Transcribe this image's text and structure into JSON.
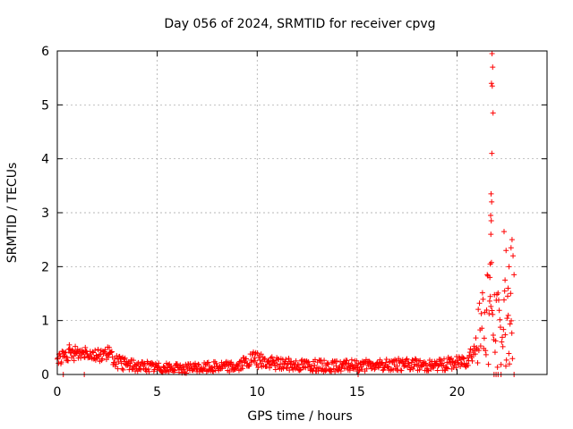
{
  "chart_data": {
    "type": "scatter",
    "title": "Day 056 of 2024, SRMTID for receiver cpvg",
    "xlabel": "GPS time / hours",
    "ylabel": "SRMTID / TECUs",
    "xlim": [
      0,
      24.5
    ],
    "ylim": [
      0,
      6
    ],
    "xticks": [
      "0",
      "5",
      "10",
      "15",
      "20"
    ],
    "yticks": [
      "0",
      "1",
      "2",
      "3",
      "4",
      "5",
      "6"
    ],
    "xtick_values": [
      0,
      5,
      10,
      15,
      20
    ],
    "ytick_values": [
      0,
      1,
      2,
      3,
      4,
      5,
      6
    ],
    "grid": true,
    "marker": "plus",
    "color": "#ff0000",
    "profile": [
      {
        "x": 0.0,
        "y": 0.3
      },
      {
        "x": 0.5,
        "y": 0.35
      },
      {
        "x": 1.0,
        "y": 0.38
      },
      {
        "x": 1.5,
        "y": 0.42
      },
      {
        "x": 2.0,
        "y": 0.35
      },
      {
        "x": 2.5,
        "y": 0.4
      },
      {
        "x": 3.0,
        "y": 0.22
      },
      {
        "x": 4.0,
        "y": 0.16
      },
      {
        "x": 5.0,
        "y": 0.13
      },
      {
        "x": 6.0,
        "y": 0.11
      },
      {
        "x": 7.0,
        "y": 0.12
      },
      {
        "x": 8.0,
        "y": 0.15
      },
      {
        "x": 9.0,
        "y": 0.15
      },
      {
        "x": 9.8,
        "y": 0.28
      },
      {
        "x": 10.5,
        "y": 0.22
      },
      {
        "x": 12.0,
        "y": 0.18
      },
      {
        "x": 13.0,
        "y": 0.17
      },
      {
        "x": 14.0,
        "y": 0.15
      },
      {
        "x": 15.0,
        "y": 0.17
      },
      {
        "x": 16.0,
        "y": 0.16
      },
      {
        "x": 17.0,
        "y": 0.19
      },
      {
        "x": 18.0,
        "y": 0.18
      },
      {
        "x": 19.0,
        "y": 0.17
      },
      {
        "x": 20.0,
        "y": 0.22
      },
      {
        "x": 20.5,
        "y": 0.3
      },
      {
        "x": 21.0,
        "y": 0.55
      },
      {
        "x": 21.3,
        "y": 1.0
      },
      {
        "x": 21.6,
        "y": 1.4
      },
      {
        "x": 21.9,
        "y": 0.9
      },
      {
        "x": 22.2,
        "y": 0.7
      },
      {
        "x": 22.5,
        "y": 1.2
      },
      {
        "x": 22.8,
        "y": 0.6
      }
    ],
    "spikes": [
      {
        "x": 21.75,
        "y": 5.95
      },
      {
        "x": 21.78,
        "y": 5.7
      },
      {
        "x": 21.72,
        "y": 5.4
      },
      {
        "x": 21.76,
        "y": 5.35
      },
      {
        "x": 21.8,
        "y": 4.85
      },
      {
        "x": 21.74,
        "y": 4.1
      },
      {
        "x": 21.7,
        "y": 3.35
      },
      {
        "x": 21.73,
        "y": 3.2
      },
      {
        "x": 21.68,
        "y": 2.95
      },
      {
        "x": 21.71,
        "y": 2.85
      },
      {
        "x": 21.69,
        "y": 2.6
      },
      {
        "x": 21.66,
        "y": 2.05
      },
      {
        "x": 21.64,
        "y": 1.8
      },
      {
        "x": 22.35,
        "y": 2.65
      },
      {
        "x": 22.75,
        "y": 2.5
      },
      {
        "x": 22.7,
        "y": 2.35
      },
      {
        "x": 22.45,
        "y": 2.3
      },
      {
        "x": 22.8,
        "y": 2.2
      },
      {
        "x": 22.6,
        "y": 2.0
      },
      {
        "x": 22.85,
        "y": 1.85
      },
      {
        "x": 22.4,
        "y": 1.75
      },
      {
        "x": 22.55,
        "y": 1.6
      },
      {
        "x": 0.6,
        "y": 0.55
      },
      {
        "x": 0.9,
        "y": 0.52
      },
      {
        "x": 2.6,
        "y": 0.5
      },
      {
        "x": 1.4,
        "y": 0.5
      },
      {
        "x": 9.9,
        "y": 0.38
      }
    ],
    "zero_points": [
      {
        "x": 0.3,
        "y": 0.0
      },
      {
        "x": 1.35,
        "y": 0.0
      },
      {
        "x": 15.05,
        "y": 0.0
      },
      {
        "x": 21.85,
        "y": 0.0
      },
      {
        "x": 21.95,
        "y": 0.0
      },
      {
        "x": 22.05,
        "y": 0.0
      },
      {
        "x": 22.2,
        "y": 0.0
      },
      {
        "x": 22.85,
        "y": 0.0
      }
    ]
  }
}
